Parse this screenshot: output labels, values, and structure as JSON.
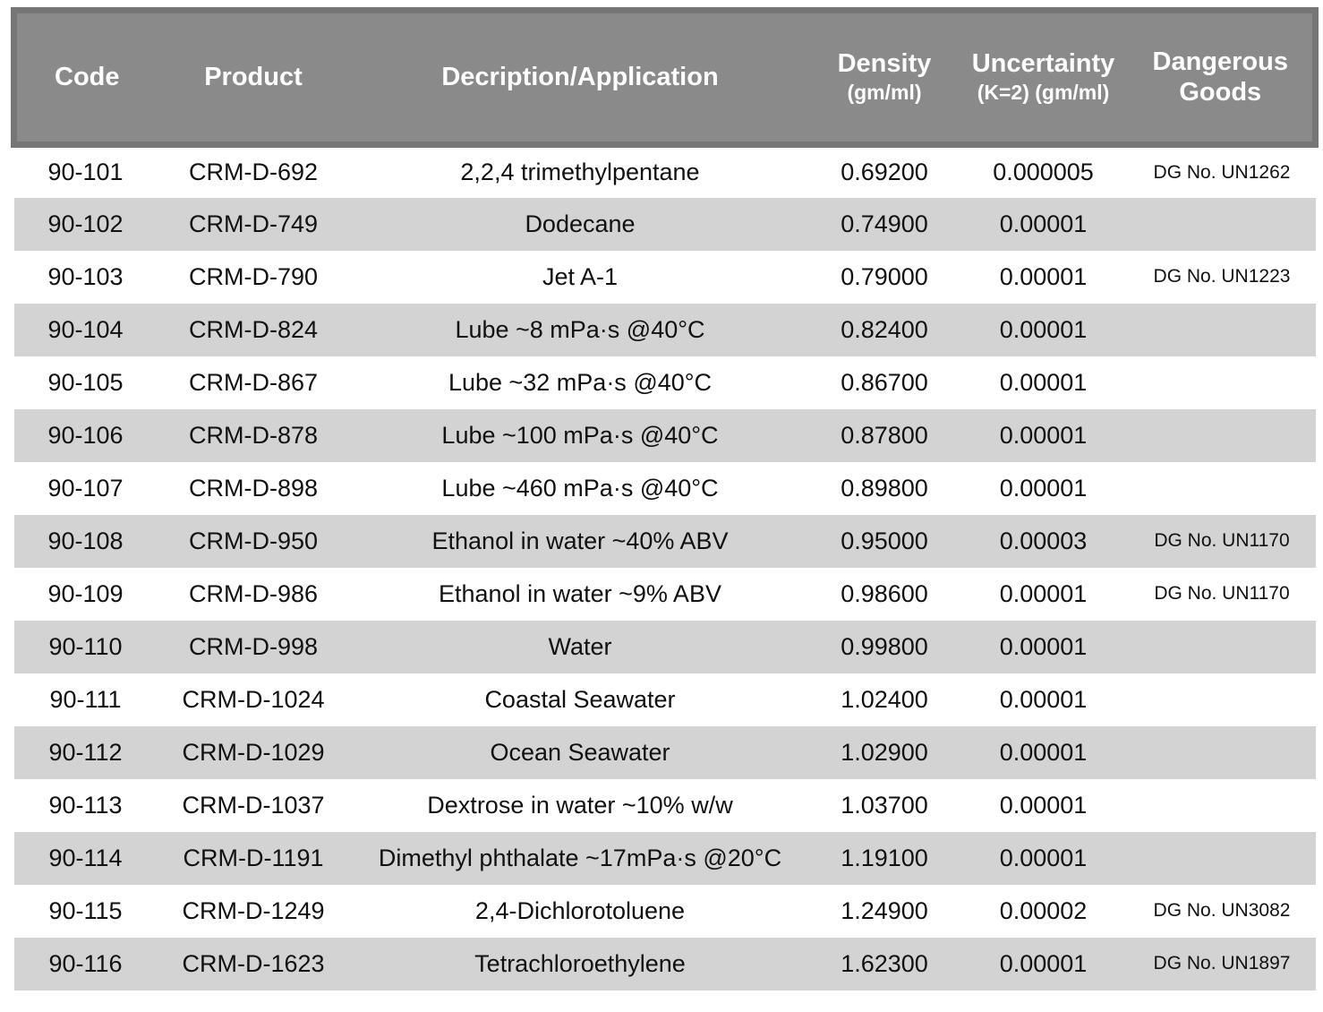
{
  "chart_data": {
    "type": "table",
    "columns": [
      "Code",
      "Product",
      "Decription/Application",
      "Density (gm/ml)",
      "Uncertainty (K=2) (gm/ml)",
      "Dangerous Goods"
    ],
    "rows": [
      [
        "90-101",
        "CRM-D-692",
        "2,2,4 trimethylpentane",
        "0.69200",
        "0.000005",
        "DG No. UN1262"
      ],
      [
        "90-102",
        "CRM-D-749",
        "Dodecane",
        "0.74900",
        "0.00001",
        ""
      ],
      [
        "90-103",
        "CRM-D-790",
        "Jet A-1",
        "0.79000",
        "0.00001",
        "DG No. UN1223"
      ],
      [
        "90-104",
        "CRM-D-824",
        "Lube ~8 mPa·s @40°C",
        "0.82400",
        "0.00001",
        ""
      ],
      [
        "90-105",
        "CRM-D-867",
        "Lube ~32 mPa·s @40°C",
        "0.86700",
        "0.00001",
        ""
      ],
      [
        "90-106",
        "CRM-D-878",
        "Lube ~100 mPa·s @40°C",
        "0.87800",
        "0.00001",
        ""
      ],
      [
        "90-107",
        "CRM-D-898",
        "Lube ~460 mPa·s @40°C",
        "0.89800",
        "0.00001",
        ""
      ],
      [
        "90-108",
        "CRM-D-950",
        "Ethanol in water ~40% ABV",
        "0.95000",
        "0.00003",
        "DG No. UN1170"
      ],
      [
        "90-109",
        "CRM-D-986",
        "Ethanol in water ~9% ABV",
        "0.98600",
        "0.00001",
        "DG No. UN1170"
      ],
      [
        "90-110",
        "CRM-D-998",
        "Water",
        "0.99800",
        "0.00001",
        ""
      ],
      [
        "90-111",
        "CRM-D-1024",
        "Coastal Seawater",
        "1.02400",
        "0.00001",
        ""
      ],
      [
        "90-112",
        "CRM-D-1029",
        "Ocean Seawater",
        "1.02900",
        "0.00001",
        ""
      ],
      [
        "90-113",
        "CRM-D-1037",
        "Dextrose in water ~10% w/w",
        "1.03700",
        "0.00001",
        ""
      ],
      [
        "90-114",
        "CRM-D-1191",
        "Dimethyl phthalate ~17mPa·s @20°C",
        "1.19100",
        "0.00001",
        ""
      ],
      [
        "90-115",
        "CRM-D-1249",
        "2,4-Dichlorotoluene",
        "1.24900",
        "0.00002",
        "DG No. UN3082"
      ],
      [
        "90-116",
        "CRM-D-1623",
        "Tetrachloroethylene",
        "1.62300",
        "0.00001",
        "DG No. UN1897"
      ]
    ]
  },
  "headers": {
    "code": "Code",
    "product": "Product",
    "description": "Decription/Application",
    "density_line1": "Density",
    "density_line2": "(gm/ml)",
    "uncertainty_line1": "Uncertainty",
    "uncertainty_line2": "(K=2) (gm/ml)",
    "dangerous_line1": "Dangerous",
    "dangerous_line2": "Goods"
  },
  "colors": {
    "header_bg": "#8a8a8a",
    "header_border": "#767676",
    "header_text": "#ffffff",
    "stripe_bg": "#d3d3d3",
    "row_bg": "#ffffff",
    "body_text": "#111111"
  }
}
